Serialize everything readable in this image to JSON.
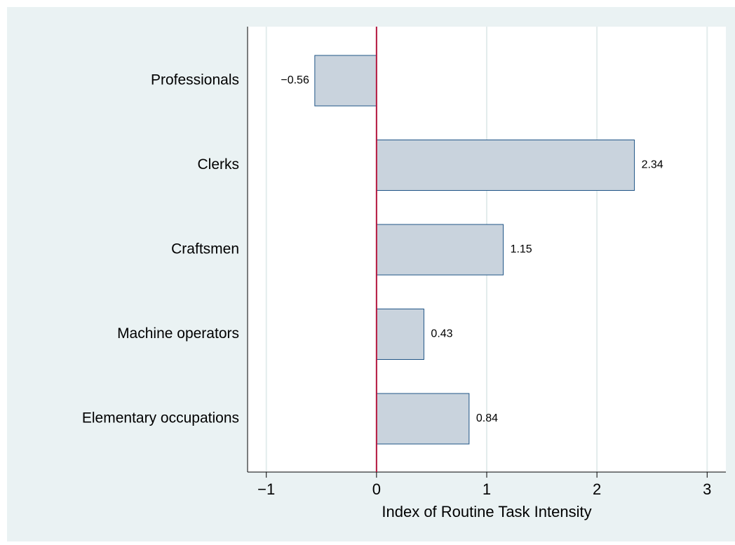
{
  "chart_data": {
    "type": "hbar",
    "categories": [
      "Professionals",
      "Clerks",
      "Craftsmen",
      "Machine operators",
      "Elementary occupations"
    ],
    "values": [
      -0.56,
      2.34,
      1.15,
      0.43,
      0.84
    ],
    "value_labels": [
      "−0.56",
      "2.34",
      "1.15",
      "0.43",
      "0.84"
    ],
    "color": "#c9d3dd",
    "edge_color": "#1f5486",
    "xlabel": "Index of Routine Task Intensity",
    "xlim": [
      -1.17,
      3.17
    ],
    "xticks": [
      {
        "value": -1,
        "label": "−1"
      },
      0,
      1,
      2,
      3
    ],
    "grid": true,
    "reference_line": 0,
    "reference_color": "#b5173e"
  }
}
